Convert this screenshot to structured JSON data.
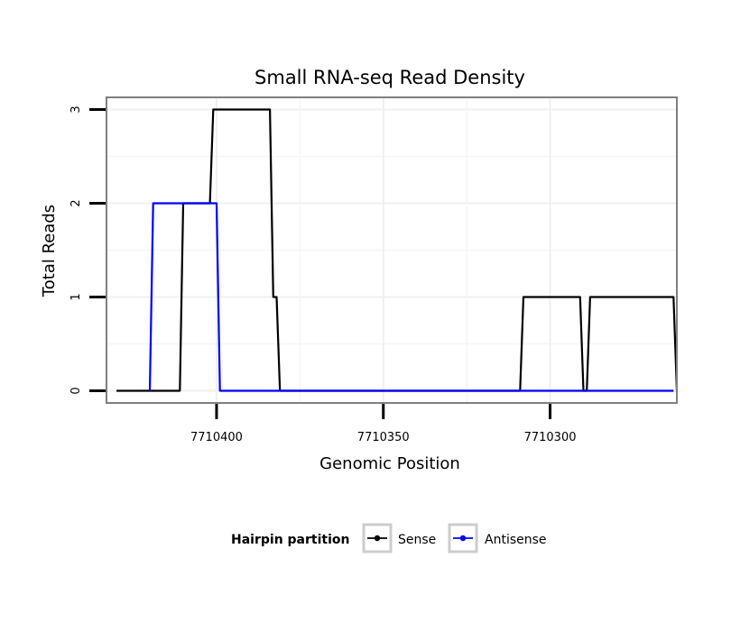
{
  "chart_data": {
    "type": "line",
    "title": "Small RNA-seq Read Density",
    "xlabel": "Genomic Position",
    "ylabel": "Total Reads",
    "xlim": [
      7710433,
      7710262
    ],
    "ylim": [
      -0.13,
      3.13
    ],
    "x_reversed": true,
    "x_ticks": [
      7710400,
      7710350,
      7710300
    ],
    "x_tick_labels": [
      "7710400",
      "7710350",
      "7710300"
    ],
    "y_ticks": [
      0,
      1,
      2,
      3
    ],
    "y_tick_labels": [
      "0",
      "1",
      "2",
      "3"
    ],
    "grid": true,
    "legend": {
      "title": "Hairpin partition",
      "position": "bottom",
      "entries": [
        "Sense",
        "Antisense"
      ]
    },
    "series": [
      {
        "name": "Sense",
        "color": "#000000",
        "points": [
          [
            7710430,
            0
          ],
          [
            7710411,
            0
          ],
          [
            7710410,
            2
          ],
          [
            7710402,
            2
          ],
          [
            7710401,
            3
          ],
          [
            7710384,
            3
          ],
          [
            7710383,
            1
          ],
          [
            7710382,
            1
          ],
          [
            7710381,
            0
          ],
          [
            7710309,
            0
          ],
          [
            7710308,
            1
          ],
          [
            7710291,
            1
          ],
          [
            7710290,
            0
          ],
          [
            7710289,
            0
          ],
          [
            7710288,
            1
          ],
          [
            7710263,
            1
          ],
          [
            7710262,
            0
          ]
        ]
      },
      {
        "name": "Antisense",
        "color": "#0000ff",
        "points": [
          [
            7710420,
            0
          ],
          [
            7710419,
            2
          ],
          [
            7710400,
            2
          ],
          [
            7710399,
            0
          ],
          [
            7710263,
            0
          ]
        ]
      }
    ]
  }
}
